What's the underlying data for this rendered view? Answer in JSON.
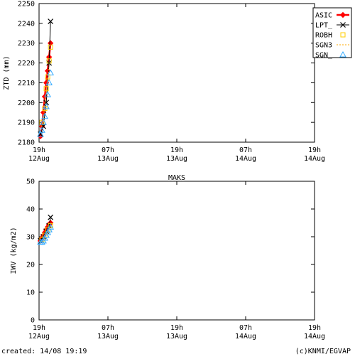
{
  "footer": {
    "created": "created: 14/08 19:19",
    "credit": "(c)KNMI/EGVAP"
  },
  "chart_data": [
    {
      "type": "line",
      "title": "",
      "xlabel": "",
      "ylabel": "ZTD (mm)",
      "x_unit": "hours since 12Aug 19h",
      "xlim": [
        0,
        48
      ],
      "ylim": [
        2180,
        2250
      ],
      "yticks": [
        2180,
        2190,
        2200,
        2210,
        2220,
        2230,
        2240,
        2250
      ],
      "xticks": [
        {
          "x": 0,
          "time": "19h",
          "date": "12Aug"
        },
        {
          "x": 12,
          "time": "07h",
          "date": "13Aug"
        },
        {
          "x": 24,
          "time": "19h",
          "date": "13Aug"
        },
        {
          "x": 36,
          "time": "07h",
          "date": "14Aug"
        },
        {
          "x": 48,
          "time": "19h",
          "date": "14Aug"
        }
      ],
      "grid": false,
      "legend": "top-right",
      "series": [
        {
          "name": "ASIC",
          "color": "#ff0000",
          "marker": "filled-diamond",
          "line": true,
          "x": [
            0.25,
            0.5,
            0.75,
            1.0,
            1.25,
            1.5,
            1.75,
            2.0
          ],
          "y": [
            2183,
            2188,
            2195,
            2203,
            2210,
            2216,
            2223,
            2230
          ]
        },
        {
          "name": "LPT_",
          "color": "#000000",
          "marker": "star",
          "line": true,
          "x": [
            0.25,
            0.75,
            1.25,
            1.75,
            2.0
          ],
          "y": [
            2184,
            2188,
            2200,
            2220,
            2241
          ]
        },
        {
          "name": "ROBH",
          "color": "#ffcc00",
          "marker": "open-square",
          "line": false,
          "x": [
            0.5,
            1.0,
            1.25,
            1.5,
            1.75,
            2.0
          ],
          "y": [
            2190,
            2197,
            2207,
            2213,
            2221,
            2228
          ]
        },
        {
          "name": "SGN3",
          "color": "#ffaa00",
          "marker": "none",
          "line": "dashed",
          "x": [
            0.25,
            0.75,
            1.25,
            1.75
          ],
          "y": [
            2185,
            2192,
            2205,
            2218
          ]
        },
        {
          "name": "SGN_",
          "color": "#33aaff",
          "marker": "open-triangle",
          "line": false,
          "x": [
            0.25,
            0.5,
            0.75,
            1.0,
            1.25,
            1.5,
            1.75,
            2.0
          ],
          "y": [
            2184,
            2186,
            2190,
            2193,
            2198,
            2204,
            2210,
            2215
          ]
        }
      ]
    },
    {
      "type": "line",
      "title": "MAKS",
      "xlabel": "",
      "ylabel": "IWV (kg/m2)",
      "x_unit": "hours since 12Aug 19h",
      "xlim": [
        0,
        48
      ],
      "ylim": [
        0,
        50
      ],
      "yticks": [
        0,
        10,
        20,
        30,
        40,
        50
      ],
      "xticks": [
        {
          "x": 0,
          "time": "19h",
          "date": "12Aug"
        },
        {
          "x": 12,
          "time": "07h",
          "date": "13Aug"
        },
        {
          "x": 24,
          "time": "19h",
          "date": "13Aug"
        },
        {
          "x": 36,
          "time": "07h",
          "date": "14Aug"
        },
        {
          "x": 48,
          "time": "19h",
          "date": "14Aug"
        }
      ],
      "grid": false,
      "legend": "none",
      "series": [
        {
          "name": "ASIC",
          "color": "#ff0000",
          "marker": "filled-diamond",
          "line": true,
          "x": [
            0.25,
            0.5,
            0.75,
            1.0,
            1.25,
            1.5,
            1.75,
            2.0
          ],
          "y": [
            28.5,
            29.5,
            30.5,
            31.5,
            32.5,
            33.5,
            34.5,
            35
          ]
        },
        {
          "name": "LPT_",
          "color": "#000000",
          "marker": "star",
          "line": true,
          "x": [
            0.25,
            0.75,
            1.25,
            1.75,
            2.0
          ],
          "y": [
            28.5,
            30,
            32,
            34,
            37
          ]
        },
        {
          "name": "ROBH",
          "color": "#ffcc00",
          "marker": "open-square",
          "line": false,
          "x": [
            0.5,
            1.0,
            1.5,
            2.0
          ],
          "y": [
            29,
            30.5,
            32.5,
            34
          ]
        },
        {
          "name": "SGN3",
          "color": "#ffaa00",
          "marker": "none",
          "line": "dashed",
          "x": [
            0.25,
            0.75,
            1.25,
            1.75
          ],
          "y": [
            28,
            29.5,
            31,
            33
          ]
        },
        {
          "name": "SGN_",
          "color": "#33aaff",
          "marker": "open-triangle",
          "line": false,
          "x": [
            0.25,
            0.5,
            0.75,
            1.0,
            1.25,
            1.5,
            1.75,
            2.0
          ],
          "y": [
            28,
            28,
            28.5,
            29.5,
            30.5,
            31.5,
            32.5,
            33.5
          ]
        }
      ]
    }
  ]
}
